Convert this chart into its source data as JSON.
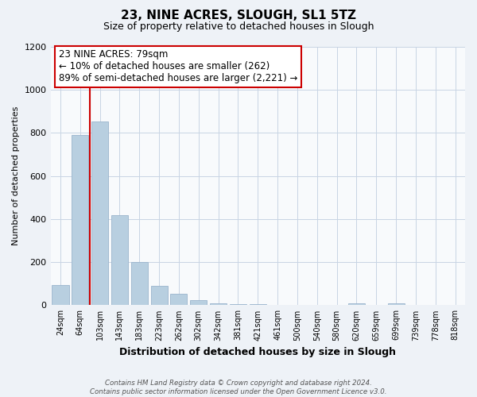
{
  "title": "23, NINE ACRES, SLOUGH, SL1 5TZ",
  "subtitle": "Size of property relative to detached houses in Slough",
  "xlabel": "Distribution of detached houses by size in Slough",
  "ylabel": "Number of detached properties",
  "categories": [
    "24sqm",
    "64sqm",
    "103sqm",
    "143sqm",
    "183sqm",
    "223sqm",
    "262sqm",
    "302sqm",
    "342sqm",
    "381sqm",
    "421sqm",
    "461sqm",
    "500sqm",
    "540sqm",
    "580sqm",
    "620sqm",
    "659sqm",
    "699sqm",
    "739sqm",
    "778sqm",
    "818sqm"
  ],
  "values": [
    95,
    790,
    855,
    420,
    200,
    90,
    55,
    25,
    10,
    5,
    4,
    2,
    0,
    0,
    0,
    10,
    0,
    10,
    0,
    0,
    0
  ],
  "bar_color": "#b8cfe0",
  "bar_edge_color": "#9ab4cc",
  "vline_color": "#cc0000",
  "annotation_line1": "23 NINE ACRES: 79sqm",
  "annotation_line2": "← 10% of detached houses are smaller (262)",
  "annotation_line3": "89% of semi-detached houses are larger (2,221) →",
  "annotation_box_facecolor": "#ffffff",
  "annotation_box_edgecolor": "#cc0000",
  "ylim": [
    0,
    1200
  ],
  "yticks": [
    0,
    200,
    400,
    600,
    800,
    1000,
    1200
  ],
  "footer_line1": "Contains HM Land Registry data © Crown copyright and database right 2024.",
  "footer_line2": "Contains public sector information licensed under the Open Government Licence v3.0.",
  "background_color": "#eef2f7",
  "plot_background_color": "#f8fafc",
  "grid_color": "#c8d4e4",
  "vline_x_index": 1
}
